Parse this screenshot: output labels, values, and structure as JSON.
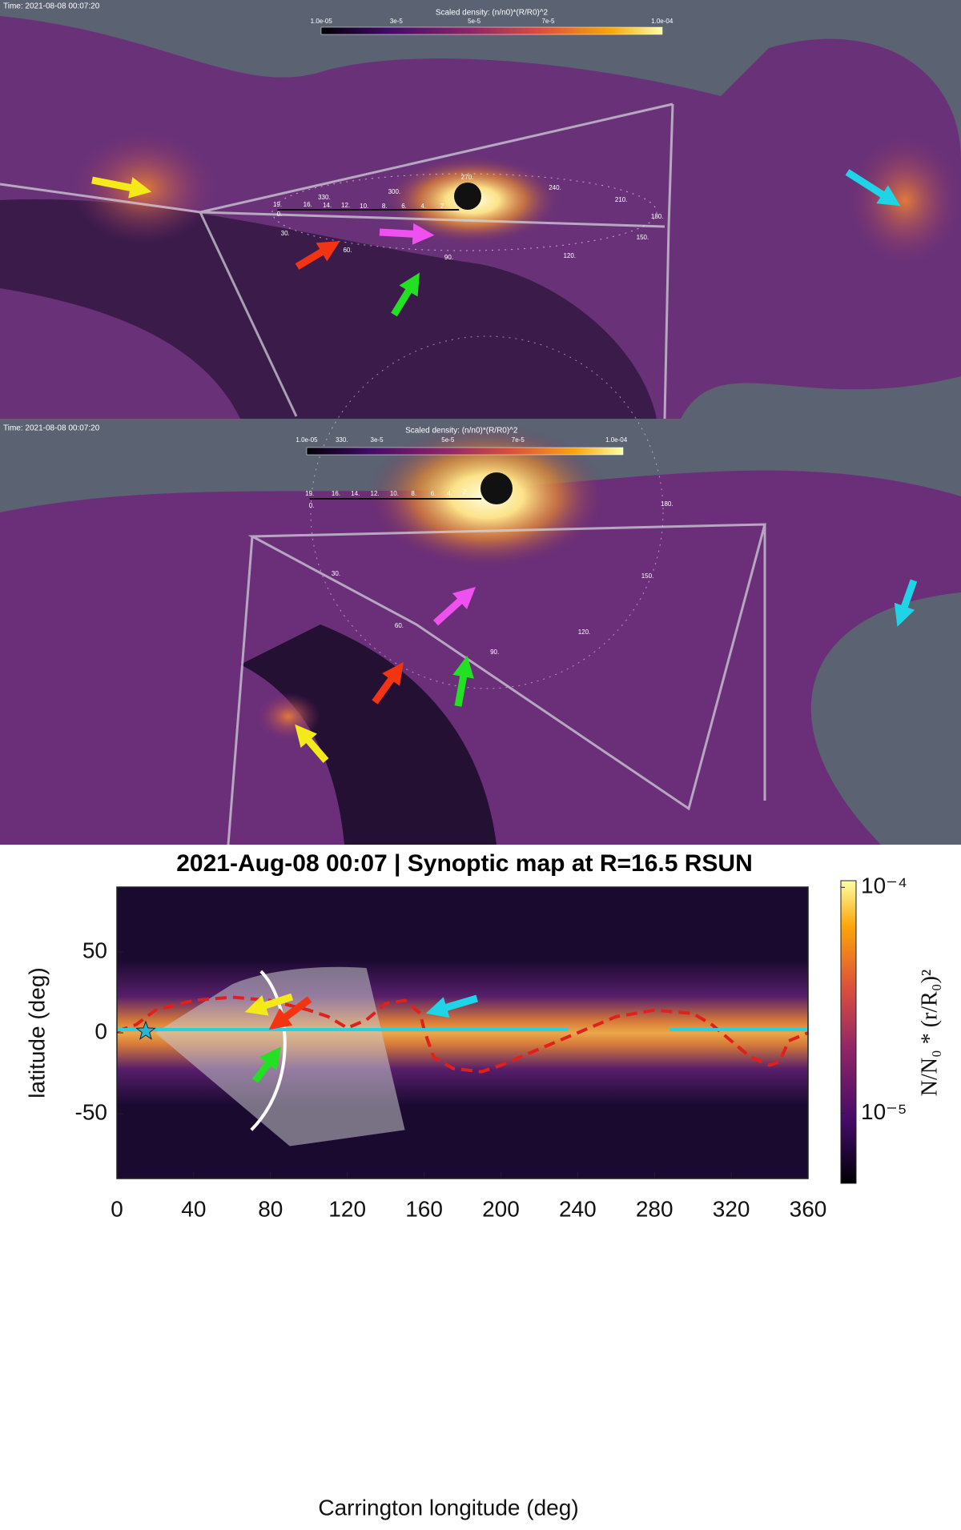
{
  "panels": [
    {
      "time": "Time: 2021-08-08 00:07:20",
      "colorbar_title": "Scaled density: (n/n0)*(R/R0)^2",
      "colorbar_labels": [
        "1.0e-05",
        "3e-5",
        "5e-5",
        "7e-5",
        "1.0e-04"
      ],
      "angle_labels": [
        "330.",
        "300.",
        "270.",
        "240.",
        "210.",
        "180.",
        "150.",
        "120.",
        "90.",
        "60.",
        "30.",
        "0."
      ],
      "radius_labels": [
        "19.",
        "16.",
        "14.",
        "12.",
        "10.",
        "8.",
        "6.",
        "4.",
        "2."
      ]
    },
    {
      "time": "Time: 2021-08-08 00:07:20",
      "colorbar_title": "Scaled density: (n/n0)*(R/R0)^2",
      "colorbar_labels": [
        "1.0e-05",
        "3e-5",
        "5e-5",
        "7e-5",
        "1.0e-04"
      ],
      "angle_labels": [
        "330.",
        "180.",
        "150.",
        "120.",
        "90.",
        "60.",
        "30.",
        "0."
      ],
      "radius_labels": [
        "19.",
        "16.",
        "14.",
        "12.",
        "10.",
        "8.",
        "6.",
        "4.",
        "2."
      ]
    }
  ],
  "chart_data": {
    "type": "map",
    "title": "2021-Aug-08 00:07  |  Synoptic map at R=16.5 RSUN",
    "xlabel": "Carrington longitude (deg)",
    "ylabel": "latitude (deg)",
    "xlim": [
      0,
      360
    ],
    "xticks": [
      0,
      40,
      80,
      120,
      160,
      200,
      240,
      280,
      320,
      360
    ],
    "ylim": [
      -90,
      90
    ],
    "yticks": [
      -50,
      0,
      50
    ],
    "colorbar": {
      "label": "N/N₀ * (r/R₀)²",
      "scale": "log",
      "lim": [
        4.9e-06,
        0.000107
      ],
      "ticks": [
        {
          "value": 0.0001,
          "label": "10⁻⁴"
        },
        {
          "value": 1e-05,
          "label": "10⁻⁵"
        }
      ]
    },
    "lines": [
      {
        "color": "#e0201b",
        "dash": true,
        "x": [
          0,
          10,
          20,
          40,
          60,
          80,
          100,
          110,
          120,
          130,
          140,
          150,
          158,
          160,
          162,
          165,
          175,
          190,
          200,
          220,
          240,
          260,
          280,
          300,
          310,
          320,
          330,
          340,
          345,
          350,
          360
        ],
        "y": [
          1,
          5,
          14,
          20,
          22,
          20,
          14,
          10,
          3,
          8,
          18,
          20,
          12,
          2,
          -5,
          -15,
          -22,
          -24,
          -20,
          -10,
          0,
          10,
          14,
          12,
          5,
          -5,
          -15,
          -20,
          -18,
          -5,
          0
        ]
      },
      {
        "color": "#22d3e6",
        "x": [
          0,
          235
        ],
        "y": [
          2,
          2
        ]
      },
      {
        "color": "#22d3e6",
        "x": [
          288,
          360
        ],
        "y": [
          2,
          2
        ]
      }
    ],
    "marker": {
      "x": 15,
      "y": 1,
      "color": "#2ab7d6"
    }
  }
}
